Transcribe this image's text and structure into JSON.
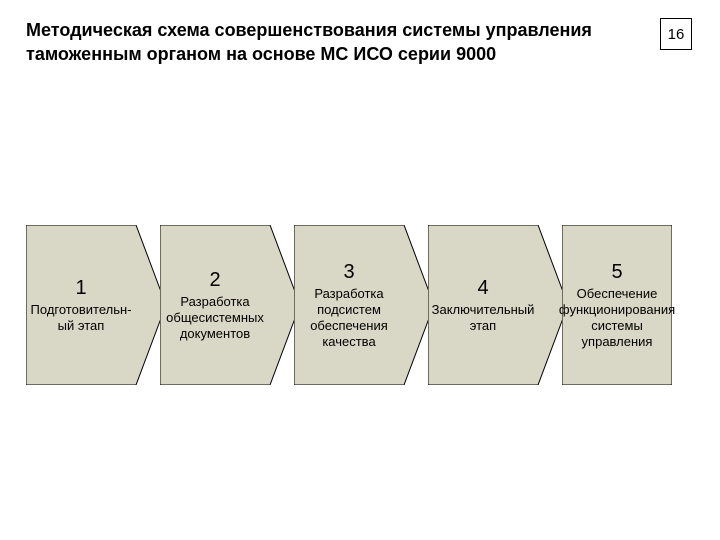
{
  "title": "Методическая схема совершенствования системы управления таможенным органом на основе МС ИСО серии 9000",
  "page_number": "16",
  "flowchart": {
    "type": "flowchart",
    "background_color": "#ffffff",
    "step_fill": "#d9d8c6",
    "step_stroke": "#000000",
    "step_stroke_width": 1,
    "title_fontsize": 18,
    "num_fontsize": 20,
    "label_fontsize": 13,
    "text_color": "#000000",
    "step_height": 160,
    "step_body_width": 110,
    "arrow_head_width": 30,
    "gap": 4,
    "steps": [
      {
        "num": "1",
        "label": "Подготовительн-ый этап"
      },
      {
        "num": "2",
        "label": "Разработка общесистемных документов"
      },
      {
        "num": "3",
        "label": "Разработка подсистем обеспечения качества"
      },
      {
        "num": "4",
        "label": "Заключительный этап"
      },
      {
        "num": "5",
        "label": "Обеспечение функционирования системы управления"
      }
    ]
  }
}
